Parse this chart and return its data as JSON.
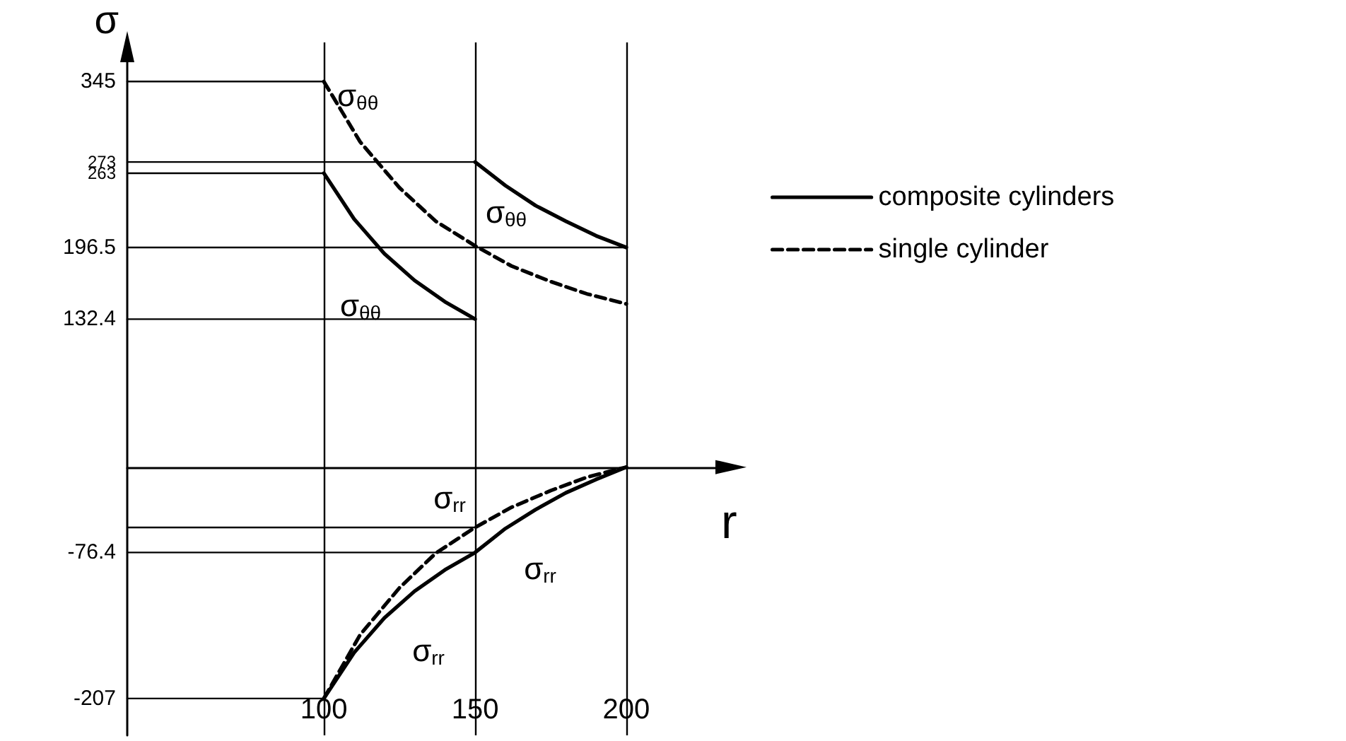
{
  "chart_data": {
    "type": "line",
    "xlabel": "r",
    "ylabel": "σ",
    "xlim": [
      35,
      236
    ],
    "xticks": [
      100,
      150,
      200
    ],
    "ylim": [
      -240,
      380
    ],
    "yticks": [
      -207,
      -76.4,
      132.4,
      196.5,
      263,
      273,
      345
    ],
    "legend": "right",
    "marker": "none",
    "series": [
      {
        "name": "composite cylinders",
        "color": "#000000",
        "line_style": "solid",
        "x": [
          100,
          110,
          120,
          130,
          140,
          150
        ],
        "values": [
          263,
          222,
          191,
          167,
          148,
          132.4
        ]
      },
      {
        "color": "#000000",
        "line_style": "solid",
        "x": [
          150,
          160,
          170,
          180,
          190,
          200
        ],
        "values": [
          273,
          252,
          234,
          220,
          207,
          196.5
        ]
      },
      {
        "color": "#000000",
        "line_style": "solid",
        "x": [
          100,
          110,
          120,
          130,
          140,
          150,
          160,
          170,
          180,
          190,
          200
        ],
        "values": [
          -207,
          -166,
          -135,
          -111,
          -92,
          -76.4,
          -55,
          -38,
          -23,
          -11,
          0
        ]
      },
      {
        "name": "single cylinder",
        "color": "#000000",
        "line_style": "dashed",
        "x": [
          100,
          112,
          125,
          137,
          150,
          162,
          175,
          187,
          200
        ],
        "values": [
          345,
          291,
          250,
          220,
          198,
          180,
          166,
          155,
          146
        ]
      },
      {
        "color": "#000000",
        "line_style": "dashed",
        "x": [
          100,
          112,
          125,
          137,
          150,
          162,
          175,
          187,
          200
        ],
        "values": [
          -207,
          -150,
          -108,
          -77,
          -54,
          -36,
          -21,
          -9,
          0
        ]
      },
      {
        "color": "#000000",
        "line_style": "solid",
        "x": [
          35,
          100
        ],
        "values": [
          345,
          345
        ]
      },
      {
        "color": "#000000",
        "line_style": "solid",
        "x": [
          35,
          150
        ],
        "values": [
          273,
          273
        ]
      },
      {
        "color": "#000000",
        "line_style": "solid",
        "x": [
          35,
          100
        ],
        "values": [
          263,
          263
        ]
      },
      {
        "color": "#000000",
        "line_style": "solid",
        "x": [
          35,
          200
        ],
        "values": [
          196.5,
          196.5
        ]
      },
      {
        "color": "#000000",
        "line_style": "solid",
        "x": [
          35,
          150
        ],
        "values": [
          132.4,
          132.4
        ]
      },
      {
        "color": "#000000",
        "line_style": "solid",
        "x": [
          35,
          150
        ],
        "values": [
          -54,
          -54
        ]
      },
      {
        "color": "#000000",
        "line_style": "solid",
        "x": [
          35,
          150
        ],
        "values": [
          -76.4,
          -76.4
        ]
      },
      {
        "color": "#000000",
        "line_style": "solid",
        "x": [
          35,
          100
        ],
        "values": [
          -207,
          -207
        ]
      }
    ],
    "ref_lines": [
      {
        "axis": "x",
        "value": 100,
        "color": "#000000"
      },
      {
        "axis": "x",
        "value": 150,
        "color": "#000000"
      },
      {
        "axis": "x",
        "value": 200,
        "color": "#000000"
      }
    ],
    "annotations": [
      {
        "text": "σ$_{θθ}$",
        "x": 100,
        "y": 345
      },
      "σ$_{θθ}$",
      "σ$_{θθ}$",
      "σ$_{rr}$",
      "σ$_{rr}$",
      "σ$_{rr}$"
    ]
  }
}
